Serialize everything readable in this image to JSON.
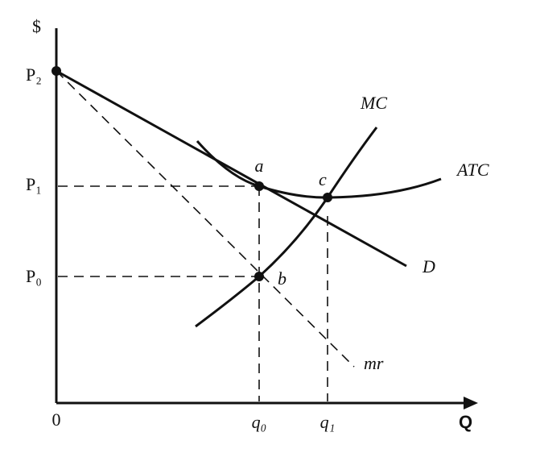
{
  "axes": {
    "y_label": "$",
    "x_label": "Q",
    "origin": "0"
  },
  "price_labels": {
    "p2": "P₂",
    "p1": "P₁",
    "p0": "P₀"
  },
  "quantity_labels": {
    "q0": "q₀",
    "q1": "q₁"
  },
  "curves": {
    "mc": "MC",
    "atc": "ATC",
    "demand": "D",
    "marginal_revenue": "mr"
  },
  "points": {
    "a": "a",
    "b": "b",
    "c": "c"
  }
}
